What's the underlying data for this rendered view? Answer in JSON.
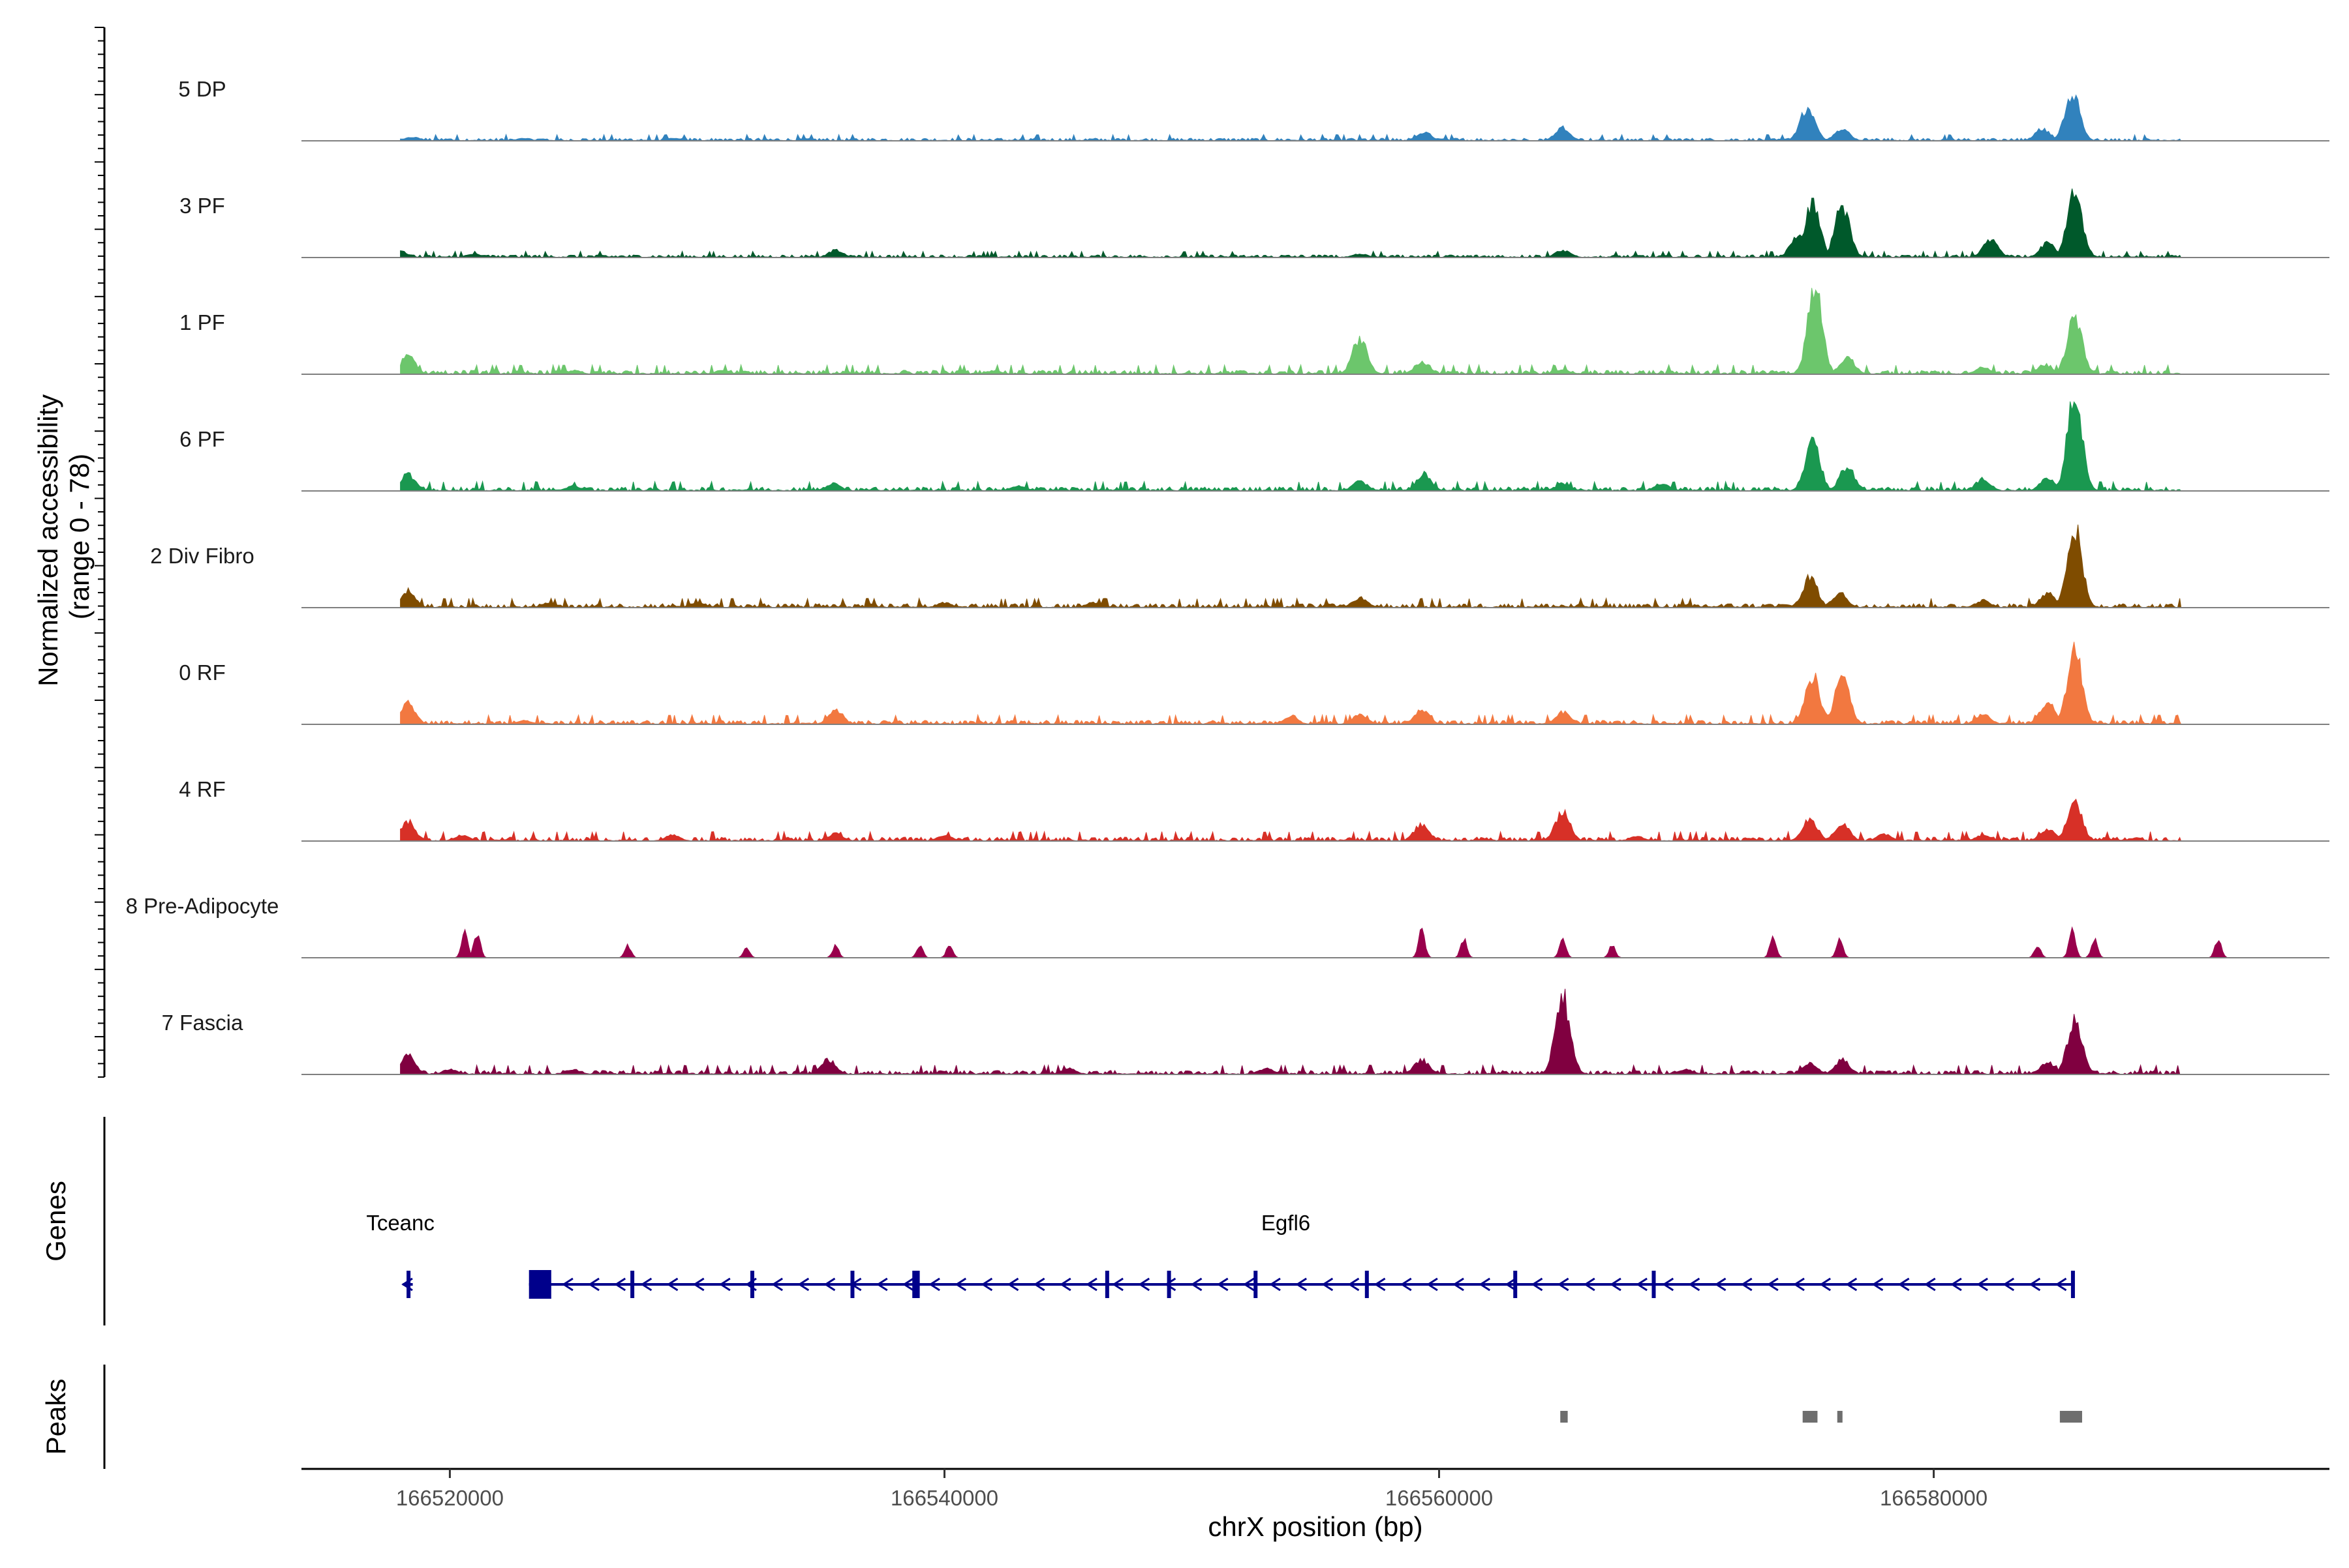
{
  "chart_data": {
    "type": "area",
    "title": "",
    "xlabel": "chrX position (bp)",
    "ylabel_lines": [
      "Normalized accessibility",
      "(range 0 - 78)"
    ],
    "y_range": [
      0,
      78
    ],
    "x_range": [
      166514000,
      166596000
    ],
    "x_ticks": [
      166520000,
      166540000,
      166560000,
      166580000
    ],
    "x_tick_labels": [
      "166520000",
      "166540000",
      "166560000",
      "166580000"
    ],
    "tracks": [
      {
        "name": "5 DP",
        "color": "#3182bd",
        "noise": 2,
        "peaks": [
          [
            166518500,
            3
          ],
          [
            166523000,
            2
          ],
          [
            166529000,
            2
          ],
          [
            166559400,
            7
          ],
          [
            166565000,
            11
          ],
          [
            166574900,
            27
          ],
          [
            166576300,
            10
          ],
          [
            166584400,
            10
          ],
          [
            166585600,
            40
          ]
        ]
      },
      {
        "name": "3 PF",
        "color": "#00592b",
        "noise": 2,
        "peaks": [
          [
            166518000,
            5
          ],
          [
            166521000,
            3
          ],
          [
            166535600,
            6
          ],
          [
            166556800,
            3
          ],
          [
            166565000,
            6
          ],
          [
            166574500,
            18
          ],
          [
            166575100,
            45
          ],
          [
            166576300,
            42
          ],
          [
            166582300,
            14
          ],
          [
            166584600,
            12
          ],
          [
            166585700,
            52
          ]
        ]
      },
      {
        "name": "1 PF",
        "color": "#6cc66c",
        "noise": 3,
        "peaks": [
          [
            166518300,
            15
          ],
          [
            166525000,
            3
          ],
          [
            166531000,
            3
          ],
          [
            166542000,
            3
          ],
          [
            166556800,
            30
          ],
          [
            166559300,
            10
          ],
          [
            166565000,
            4
          ],
          [
            166575200,
            70
          ],
          [
            166576500,
            14
          ],
          [
            166582000,
            6
          ],
          [
            166584500,
            8
          ],
          [
            166585700,
            48
          ]
        ]
      },
      {
        "name": "6 PF",
        "color": "#1a9850",
        "noise": 3,
        "peaks": [
          [
            166518300,
            14
          ],
          [
            166525000,
            4
          ],
          [
            166535500,
            6
          ],
          [
            166543000,
            4
          ],
          [
            166556800,
            8
          ],
          [
            166559400,
            14
          ],
          [
            166565000,
            6
          ],
          [
            166569000,
            6
          ],
          [
            166575100,
            42
          ],
          [
            166576500,
            20
          ],
          [
            166582000,
            10
          ],
          [
            166584600,
            10
          ],
          [
            166585700,
            78
          ]
        ]
      },
      {
        "name": "2 Div Fibro",
        "color": "#7f4c00",
        "noise": 3,
        "peaks": [
          [
            166518300,
            14
          ],
          [
            166524000,
            4
          ],
          [
            166530000,
            4
          ],
          [
            166540000,
            4
          ],
          [
            166546000,
            4
          ],
          [
            166556800,
            8
          ],
          [
            166575000,
            25
          ],
          [
            166576200,
            12
          ],
          [
            166582000,
            6
          ],
          [
            166584600,
            12
          ],
          [
            166585700,
            66
          ]
        ]
      },
      {
        "name": "0 RF",
        "color": "#f27840",
        "noise": 3,
        "peaks": [
          [
            166518300,
            18
          ],
          [
            166523000,
            3
          ],
          [
            166535600,
            12
          ],
          [
            166554000,
            6
          ],
          [
            166556800,
            8
          ],
          [
            166559300,
            12
          ],
          [
            166565000,
            10
          ],
          [
            166575100,
            40
          ],
          [
            166576300,
            38
          ],
          [
            166582000,
            8
          ],
          [
            166584600,
            18
          ],
          [
            166585700,
            60
          ]
        ]
      },
      {
        "name": "4 RF",
        "color": "#d73027",
        "noise": 3,
        "peaks": [
          [
            166518300,
            16
          ],
          [
            166520500,
            5
          ],
          [
            166529000,
            5
          ],
          [
            166535600,
            6
          ],
          [
            166540000,
            5
          ],
          [
            166559300,
            14
          ],
          [
            166565000,
            24
          ],
          [
            166568000,
            4
          ],
          [
            166575000,
            18
          ],
          [
            166576300,
            14
          ],
          [
            166578000,
            6
          ],
          [
            166582000,
            5
          ],
          [
            166584600,
            10
          ],
          [
            166585700,
            32
          ]
        ]
      },
      {
        "name": "8 Pre-Adipocyte",
        "color": "#99004c",
        "noise": 0,
        "peaks": [
          [
            166520600,
            20
          ],
          [
            166521100,
            20
          ],
          [
            166527200,
            10
          ],
          [
            166532000,
            8
          ],
          [
            166535600,
            10
          ],
          [
            166539000,
            10
          ],
          [
            166540200,
            10
          ],
          [
            166559300,
            24
          ],
          [
            166561000,
            15
          ],
          [
            166565000,
            17
          ],
          [
            166567000,
            10
          ],
          [
            166573500,
            17
          ],
          [
            166576200,
            17
          ],
          [
            166584200,
            10
          ],
          [
            166585600,
            25
          ],
          [
            166586500,
            15
          ],
          [
            166591500,
            15
          ]
        ]
      },
      {
        "name": "7 Fascia",
        "color": "#800040",
        "noise": 3,
        "peaks": [
          [
            166518300,
            16
          ],
          [
            166520000,
            4
          ],
          [
            166525000,
            4
          ],
          [
            166535300,
            12
          ],
          [
            166545000,
            5
          ],
          [
            166553000,
            5
          ],
          [
            166559300,
            12
          ],
          [
            166565000,
            64
          ],
          [
            166570000,
            4
          ],
          [
            166575000,
            10
          ],
          [
            166576300,
            12
          ],
          [
            166584600,
            10
          ],
          [
            166585700,
            44
          ]
        ]
      }
    ],
    "genes": [
      {
        "name": "Tceanc",
        "start": 166518100,
        "end": 166518500,
        "strand": "-",
        "label_pos": 166518000,
        "exons": [
          [
            166518250,
            166518400
          ]
        ]
      },
      {
        "name": "Egfl6",
        "start": 166523200,
        "end": 166585700,
        "strand": "-",
        "label_pos": 166553800,
        "exons": [
          [
            166523200,
            166524100
          ],
          [
            166527300,
            166527400
          ],
          [
            166532150,
            166532250
          ],
          [
            166536200,
            166536300
          ],
          [
            166538700,
            166539000
          ],
          [
            166546500,
            166546600
          ],
          [
            166549000,
            166549100
          ],
          [
            166552500,
            166552600
          ],
          [
            166557000,
            166557100
          ],
          [
            166563000,
            166563100
          ],
          [
            166568600,
            166568700
          ],
          [
            166585550,
            166585700
          ]
        ]
      }
    ],
    "peak_regions": [
      [
        166564900,
        166565200
      ],
      [
        166574700,
        166575300
      ],
      [
        166576100,
        166576300
      ],
      [
        166585100,
        166586000
      ]
    ],
    "panel_labels": {
      "genes": "Genes",
      "peaks": "Peaks"
    }
  }
}
